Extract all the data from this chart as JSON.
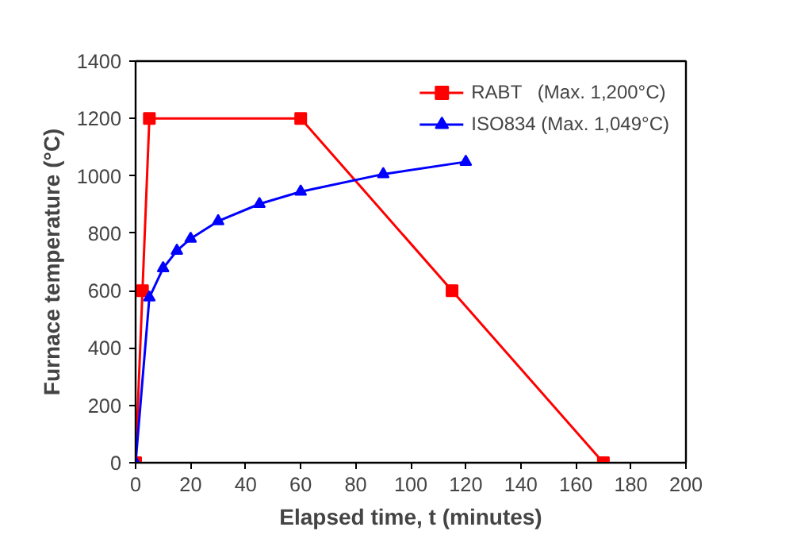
{
  "chart_data": {
    "type": "line",
    "xlabel": "Elapsed time, t (minutes)",
    "ylabel": "Furnace temperature (°C)",
    "xlim": [
      0,
      200
    ],
    "xticks": [
      0,
      20,
      40,
      60,
      80,
      100,
      120,
      140,
      160,
      180,
      200
    ],
    "ylim": [
      0,
      1400
    ],
    "yticks": [
      0,
      200,
      400,
      600,
      800,
      1000,
      1200,
      1400
    ],
    "grid": false,
    "legend": "top right",
    "line_style": "solid",
    "series": [
      {
        "name": "RABT   (Max. 1,200°C)",
        "color": "#ff0000",
        "marker": "square",
        "x": [
          0,
          2.5,
          5,
          60,
          115,
          170
        ],
        "values": [
          0,
          600,
          1200,
          1200,
          600,
          0
        ]
      },
      {
        "name": "ISO834 (Max. 1,049°C)",
        "color": "#0000ff",
        "marker": "triangle",
        "x": [
          0,
          5,
          10,
          15,
          20,
          30,
          45,
          60,
          90,
          120
        ],
        "values": [
          0,
          576,
          678,
          739,
          781,
          842,
          902,
          945,
          1006,
          1049
        ]
      }
    ]
  }
}
